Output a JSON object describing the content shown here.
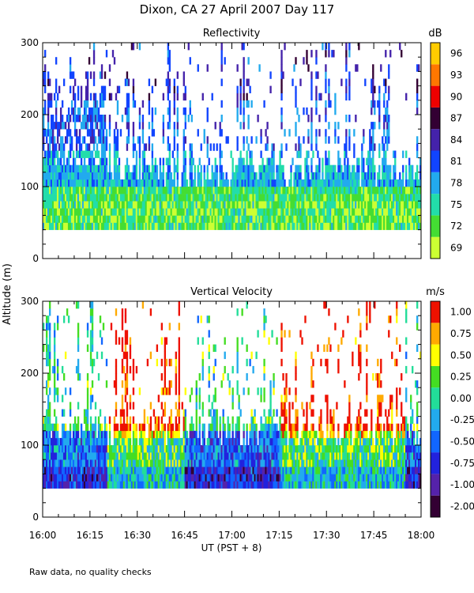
{
  "figure": {
    "title": "Dixon, CA 27 April 2007  Day 117",
    "ylabel": "Altitude (m)",
    "xlabel": "UT  (PST + 8)",
    "footnote": "Raw data, no quality checks"
  },
  "chart_data": [
    {
      "type": "heatmap",
      "title": "Reflectivity",
      "xlabel": "UT  (PST + 8)",
      "ylabel": "Altitude (m)",
      "x_range": [
        "16:00",
        "18:00"
      ],
      "xlim_minutes": [
        0,
        120
      ],
      "ylim": [
        0,
        300
      ],
      "x_ticks": [
        "16:00",
        "16:15",
        "16:30",
        "16:45",
        "17:00",
        "17:15",
        "17:30",
        "17:45",
        "18:00"
      ],
      "y_ticks": [
        "0",
        "100",
        "200",
        "300"
      ],
      "data_altitude_range_m": [
        40,
        300
      ],
      "colorbar": {
        "unit": "dB",
        "labels": [
          "69",
          "72",
          "75",
          "78",
          "81",
          "84",
          "87",
          "90",
          "93",
          "96"
        ],
        "colors": [
          "#ccff33",
          "#44dd33",
          "#22ddaa",
          "#22aaee",
          "#1144ff",
          "#4422aa",
          "#330033",
          "#ee0000",
          "#ff7700",
          "#ffcc00"
        ]
      }
    },
    {
      "type": "heatmap",
      "title": "Vertical Velocity",
      "xlabel": "UT  (PST + 8)",
      "ylabel": "Altitude (m)",
      "x_range": [
        "16:00",
        "18:00"
      ],
      "xlim_minutes": [
        0,
        120
      ],
      "ylim": [
        0,
        300
      ],
      "x_ticks": [
        "16:00",
        "16:15",
        "16:30",
        "16:45",
        "17:00",
        "17:15",
        "17:30",
        "17:45",
        "18:00"
      ],
      "y_ticks": [
        "0",
        "100",
        "200",
        "300"
      ],
      "data_altitude_range_m": [
        40,
        300
      ],
      "colorbar": {
        "unit": "m/s",
        "labels": [
          "-2.00",
          "-1.00",
          "-0.75",
          "-0.50",
          "-0.25",
          "0.00",
          "0.25",
          "0.50",
          "0.75",
          "1.00"
        ],
        "colors": [
          "#330033",
          "#5522aa",
          "#2222dd",
          "#1166ff",
          "#22aaee",
          "#22dd99",
          "#44dd22",
          "#ffff00",
          "#ffaa00",
          "#ee1100"
        ]
      }
    }
  ]
}
